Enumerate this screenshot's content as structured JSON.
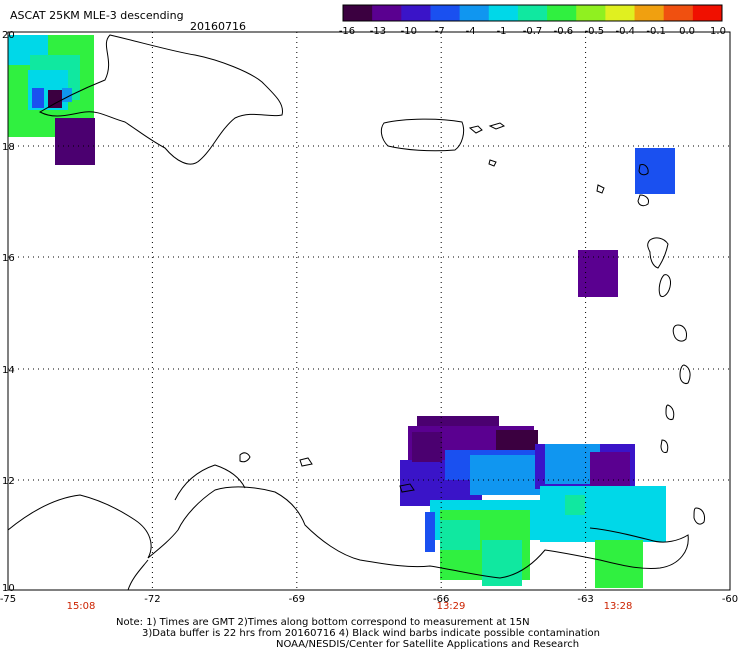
{
  "header": {
    "title": "ASCAT 25KM MLE-3 descending",
    "date": "20160716"
  },
  "colorbar": {
    "labels": [
      "-16",
      "-13",
      "-10",
      "-7",
      "-4",
      "-1",
      "-0.7",
      "-0.6",
      "-0.5",
      "-0.4",
      "-0.1",
      "0.0",
      "1.0"
    ],
    "colors": [
      "#3b0040",
      "#5a0090",
      "#3a14c8",
      "#1a50f0",
      "#1096f0",
      "#00d8e8",
      "#10e8a0",
      "#30f040",
      "#90f020",
      "#e0f020",
      "#f0a010",
      "#f05010",
      "#f01000"
    ]
  },
  "map": {
    "x_ticks": [
      "-75",
      "-72",
      "-69",
      "-66",
      "-63",
      "-60"
    ],
    "y_ticks": [
      "20",
      "18",
      "16",
      "14",
      "12",
      "10"
    ],
    "grid": "dotted",
    "land_color": "#ffffff",
    "coast_color": "#000000"
  },
  "times": [
    "15:08",
    "13:29",
    "13:28"
  ],
  "notes": {
    "line1": "Note: 1) Times are GMT 2)Times along bottom correspond to measurement at 15N",
    "line2": "3)Data buffer is 22 hrs from 20160716 4) Black wind barbs indicate possible contamination",
    "line3": "NOAA/NESDIS/Center for Satellite Applications and Research"
  }
}
